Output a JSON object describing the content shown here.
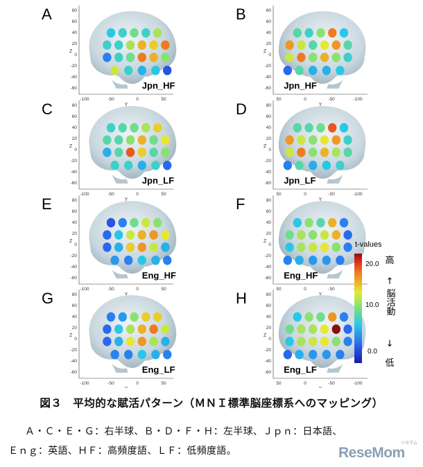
{
  "panels": [
    {
      "letter": "A",
      "label": "Jpn_HF",
      "view": "right",
      "dots": [
        8,
        9,
        11,
        9,
        13,
        9,
        9,
        13,
        17,
        16,
        19,
        5,
        9,
        11,
        19,
        17,
        12,
        14,
        9,
        7,
        8,
        3
      ]
    },
    {
      "letter": "B",
      "label": "Jpn_HF",
      "view": "left",
      "dots": [
        8,
        19,
        12,
        9,
        10,
        10,
        18,
        15,
        10,
        14,
        18,
        9,
        12,
        17,
        12,
        19,
        14,
        8,
        7,
        7,
        10,
        4
      ]
    },
    {
      "letter": "C",
      "label": "Jpn_LF",
      "view": "right",
      "dots": [
        9,
        10,
        11,
        13,
        16,
        10,
        10,
        12,
        17,
        11,
        15,
        7,
        10,
        20,
        16,
        10,
        12,
        9,
        9,
        7,
        9,
        4
      ]
    },
    {
      "letter": "D",
      "label": "Jpn_LF",
      "view": "left",
      "dots": [
        8,
        20,
        11,
        10,
        10,
        9,
        18,
        15,
        12,
        14,
        18,
        10,
        13,
        17,
        12,
        19,
        14,
        9,
        8,
        7,
        10,
        5
      ]
    },
    {
      "letter": "E",
      "label": "Eng_HF",
      "view": "right",
      "dots": [
        3,
        5,
        11,
        14,
        12,
        4,
        8,
        14,
        17,
        18,
        15,
        4,
        7,
        16,
        18,
        14,
        7,
        6,
        5,
        8,
        7,
        5
      ]
    },
    {
      "letter": "F",
      "label": "Eng_HF",
      "view": "left",
      "dots": [
        5,
        17,
        10,
        12,
        8,
        4,
        17,
        14,
        12,
        13,
        11,
        5,
        12,
        15,
        14,
        13,
        8,
        5,
        6,
        6,
        7,
        5
      ]
    },
    {
      "letter": "G",
      "label": "Eng_LF",
      "view": "right",
      "dots": [
        5,
        6,
        12,
        16,
        16,
        4,
        8,
        13,
        17,
        19,
        14,
        4,
        7,
        15,
        18,
        13,
        7,
        5,
        5,
        8,
        7,
        5
      ]
    },
    {
      "letter": "H",
      "label": "Eng_LF",
      "view": "left",
      "dots": [
        5,
        18,
        11,
        12,
        8,
        4,
        23,
        15,
        13,
        13,
        11,
        5,
        12,
        15,
        14,
        13,
        8,
        5,
        6,
        6,
        7,
        4
      ]
    }
  ],
  "axes": {
    "x_label": "Y",
    "z_label": "Z",
    "z_ticks": [
      "80",
      "60",
      "40",
      "20",
      "0",
      "-20",
      "-40",
      "-60"
    ],
    "x_ticks_right": [
      "-100",
      "-50",
      "0",
      "50"
    ],
    "x_ticks_left": [
      "50",
      "0",
      "-50",
      "-100"
    ]
  },
  "colorbar": {
    "title": "t-values",
    "ticks": [
      "20.0",
      "10.0",
      "0.0"
    ],
    "scale": {
      "min": 0,
      "max": 23
    },
    "high_label": "高",
    "up_arrow": "↑",
    "middle_label": "脳活動",
    "down_arrow": "↓",
    "low_label": "低"
  },
  "caption": {
    "title": "図３　平均的な賦活パターン（ＭＮＩ標準脳座標系へのマッピング）",
    "line1": "Ａ・Ｃ・Ｅ・Ｇ：右半球、Ｂ・Ｄ・Ｆ・Ｈ：左半球、Ｊｐｎ：日本語、",
    "line2": "Ｅｎｇ：英語、ＨＦ：高頻度語、ＬＦ：低頻度語。"
  },
  "logo": {
    "text": "ReseMom",
    "kana": "リセマム",
    "color": "#8aa0b4"
  }
}
